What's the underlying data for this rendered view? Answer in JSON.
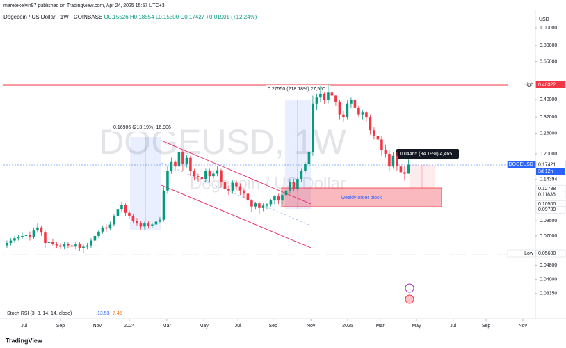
{
  "header": {
    "published": "maretekelvin97 published on TradingView.com, Apr 24, 2025 15:57 UTC+3"
  },
  "footer": {
    "brand": "TradingView"
  },
  "chart_data": {
    "type": "candlestick",
    "log_scale": true,
    "currency": "USD",
    "watermark": [
      "DOGEUSD, 1W",
      "Dogecoin / US Dollar"
    ],
    "legend": {
      "symbol": "Dogecoin / US Dollar · 1W · COINBASE",
      "open": "O0.15526",
      "high": "H0.18554",
      "low": "L0.15500",
      "close": "C0.17427",
      "change": "+0.01901 (+12.24%)"
    },
    "annotations": [
      "0.16906 (218.19%) 16,906",
      "0.27550 (218.18%) 27,550",
      "0.04465 (34.19%) 4,465",
      "weekly order block"
    ],
    "indicator": {
      "name": "Stoch RSI (3, 3, 14, 14, close)",
      "values": [
        "13.53",
        "7.45"
      ]
    },
    "up_color": "#089981",
    "down_color": "#f23645",
    "open": [
      0.062,
      0.064,
      0.066,
      0.068,
      0.069,
      0.07,
      0.071,
      0.069,
      0.075,
      0.078,
      0.073,
      0.064,
      0.065,
      0.063,
      0.062,
      0.061,
      0.063,
      0.062,
      0.061,
      0.063,
      0.06,
      0.061,
      0.062,
      0.066,
      0.07,
      0.074,
      0.078,
      0.077,
      0.081,
      0.09,
      0.098,
      0.104,
      0.094,
      0.09,
      0.085,
      0.082,
      0.079,
      0.082,
      0.08,
      0.081,
      0.084,
      0.086,
      0.125,
      0.16,
      0.18,
      0.17,
      0.205,
      0.175,
      0.19,
      0.16,
      0.15,
      0.148,
      0.145,
      0.16,
      0.15,
      0.155,
      0.162,
      0.14,
      0.128,
      0.125,
      0.138,
      0.132,
      0.125,
      0.12,
      0.11,
      0.102,
      0.106,
      0.1,
      0.103,
      0.105,
      0.11,
      0.116,
      0.11,
      0.118,
      0.125,
      0.14,
      0.128,
      0.145,
      0.16,
      0.175,
      0.205,
      0.38,
      0.41,
      0.43,
      0.4,
      0.44,
      0.42,
      0.39,
      0.33,
      0.32,
      0.38,
      0.4,
      0.36,
      0.33,
      0.34,
      0.32,
      0.27,
      0.25,
      0.24,
      0.21,
      0.2,
      0.17,
      0.195,
      0.17,
      0.158,
      0.15526
    ],
    "high": [
      0.066,
      0.068,
      0.07,
      0.071,
      0.073,
      0.074,
      0.074,
      0.078,
      0.082,
      0.08,
      0.075,
      0.067,
      0.067,
      0.065,
      0.064,
      0.065,
      0.065,
      0.064,
      0.065,
      0.065,
      0.063,
      0.064,
      0.068,
      0.072,
      0.076,
      0.08,
      0.081,
      0.084,
      0.093,
      0.101,
      0.108,
      0.106,
      0.097,
      0.093,
      0.088,
      0.085,
      0.084,
      0.085,
      0.083,
      0.086,
      0.089,
      0.13,
      0.17,
      0.19,
      0.185,
      0.228,
      0.21,
      0.196,
      0.195,
      0.165,
      0.155,
      0.152,
      0.165,
      0.165,
      0.16,
      0.17,
      0.165,
      0.145,
      0.133,
      0.142,
      0.142,
      0.137,
      0.128,
      0.123,
      0.112,
      0.108,
      0.108,
      0.106,
      0.107,
      0.112,
      0.118,
      0.12,
      0.121,
      0.128,
      0.145,
      0.145,
      0.148,
      0.165,
      0.18,
      0.215,
      0.42,
      0.43,
      0.478,
      0.44,
      0.48464,
      0.46,
      0.425,
      0.4,
      0.345,
      0.395,
      0.41,
      0.405,
      0.37,
      0.35,
      0.345,
      0.33,
      0.28,
      0.265,
      0.25,
      0.225,
      0.21,
      0.205,
      0.205,
      0.195,
      0.172,
      0.18554
    ],
    "low": [
      0.06,
      0.062,
      0.064,
      0.066,
      0.067,
      0.067,
      0.066,
      0.067,
      0.073,
      0.07,
      0.06,
      0.061,
      0.062,
      0.06,
      0.059,
      0.059,
      0.06,
      0.059,
      0.059,
      0.058,
      0.056,
      0.059,
      0.06,
      0.064,
      0.068,
      0.072,
      0.074,
      0.075,
      0.079,
      0.087,
      0.095,
      0.09,
      0.087,
      0.082,
      0.08,
      0.076,
      0.076,
      0.077,
      0.078,
      0.079,
      0.082,
      0.084,
      0.12,
      0.155,
      0.16,
      0.165,
      0.16,
      0.168,
      0.15,
      0.142,
      0.14,
      0.138,
      0.138,
      0.14,
      0.145,
      0.15,
      0.13,
      0.122,
      0.118,
      0.12,
      0.125,
      0.118,
      0.113,
      0.1,
      0.095,
      0.098,
      0.092,
      0.096,
      0.099,
      0.102,
      0.105,
      0.105,
      0.105,
      0.115,
      0.12,
      0.124,
      0.124,
      0.14,
      0.155,
      0.165,
      0.195,
      0.35,
      0.39,
      0.38,
      0.38,
      0.38,
      0.37,
      0.31,
      0.3,
      0.31,
      0.36,
      0.34,
      0.32,
      0.31,
      0.3,
      0.255,
      0.24,
      0.23,
      0.195,
      0.19,
      0.16,
      0.165,
      0.16,
      0.15,
      0.142,
      0.155
    ],
    "close": [
      0.064,
      0.066,
      0.068,
      0.069,
      0.07,
      0.071,
      0.069,
      0.075,
      0.078,
      0.073,
      0.064,
      0.065,
      0.063,
      0.062,
      0.061,
      0.063,
      0.062,
      0.061,
      0.063,
      0.06,
      0.061,
      0.062,
      0.066,
      0.07,
      0.074,
      0.078,
      0.077,
      0.081,
      0.09,
      0.098,
      0.104,
      0.094,
      0.09,
      0.085,
      0.082,
      0.079,
      0.082,
      0.08,
      0.081,
      0.084,
      0.086,
      0.125,
      0.16,
      0.18,
      0.17,
      0.205,
      0.175,
      0.19,
      0.16,
      0.15,
      0.148,
      0.145,
      0.16,
      0.15,
      0.155,
      0.162,
      0.14,
      0.128,
      0.125,
      0.138,
      0.132,
      0.125,
      0.12,
      0.11,
      0.102,
      0.106,
      0.1,
      0.103,
      0.105,
      0.11,
      0.116,
      0.11,
      0.118,
      0.125,
      0.14,
      0.128,
      0.145,
      0.16,
      0.175,
      0.205,
      0.38,
      0.41,
      0.43,
      0.4,
      0.44,
      0.42,
      0.39,
      0.33,
      0.32,
      0.38,
      0.4,
      0.36,
      0.33,
      0.34,
      0.32,
      0.27,
      0.25,
      0.24,
      0.21,
      0.2,
      0.17,
      0.195,
      0.17,
      0.158,
      0.155,
      0.17427
    ],
    "xlim": [
      -0.9,
      138.2
    ],
    "xticks": [
      {
        "value": 4.5,
        "label": "Jul"
      },
      {
        "value": 14,
        "label": "Sep"
      },
      {
        "value": 23.6,
        "label": "Nov"
      },
      {
        "value": 32,
        "label": "2024"
      },
      {
        "value": 41.8,
        "label": "Mar"
      },
      {
        "value": 51.5,
        "label": "May"
      },
      {
        "value": 60.4,
        "label": "Jul"
      },
      {
        "value": 69.6,
        "label": "Sep"
      },
      {
        "value": 79.5,
        "label": "Nov"
      },
      {
        "value": 89.1,
        "label": "2025"
      },
      {
        "value": 97.6,
        "label": "Mar"
      },
      {
        "value": 107.1,
        "label": "May"
      },
      {
        "value": 116.7,
        "label": "Jul"
      },
      {
        "value": 125.3,
        "label": "Sep"
      },
      {
        "value": 134.9,
        "label": "Nov"
      }
    ],
    "ylim": [
      0.0256,
      1.093
    ],
    "yticks": [
      {
        "value": 1,
        "label": "1.00000"
      },
      {
        "value": 0.8,
        "label": "0.80000"
      },
      {
        "value": 0.65,
        "label": "0.65000"
      },
      {
        "value": 0.4,
        "label": "0.40000"
      },
      {
        "value": 0.32,
        "label": "0.32000"
      },
      {
        "value": 0.26,
        "label": "0.26000"
      },
      {
        "value": 0.2,
        "label": "0.20000"
      },
      {
        "value": 0.14394,
        "label": "0.14394"
      },
      {
        "value": 0.085,
        "label": "0.08500"
      },
      {
        "value": 0.07,
        "label": "0.07000"
      },
      {
        "value": 0.048,
        "label": "0.04800"
      },
      {
        "value": 0.04,
        "label": "0.04000"
      },
      {
        "value": 0.0335,
        "label": "0.03350"
      }
    ],
    "price_labels": [
      {
        "value": 0.48464,
        "label": "0.48464",
        "tag": "High",
        "color": "#ffffff",
        "text_color": "#131722"
      },
      {
        "value": 0.48322,
        "label": "0.48322",
        "color": "#f23645",
        "text_color": "#ffffff"
      },
      {
        "value": 0.17427,
        "label": "0.17427",
        "tag": "DOGEUSD",
        "sub": "3d 12h",
        "color": "#2962ff",
        "text_color": "#ffffff"
      },
      {
        "value": 0.17421,
        "label": "0.17421",
        "color": "#ffffff",
        "text_color": "#131722"
      },
      {
        "value": 0.12788,
        "label": "0.12788",
        "color": "#ffffff",
        "text_color": "#131722"
      },
      {
        "value": 0.11836,
        "label": "0.11836",
        "color": "#ffffff",
        "text_color": "#131722"
      },
      {
        "value": 0.105,
        "label": "0.10500",
        "color": "#ffffff",
        "text_color": "#131722"
      },
      {
        "value": 0.09789,
        "label": "0.09789",
        "color": "#ffffff",
        "text_color": "#131722"
      },
      {
        "value": 0.056,
        "label": "0.05600",
        "tag": "Low",
        "color": "#ffffff",
        "text_color": "#131722"
      }
    ]
  }
}
